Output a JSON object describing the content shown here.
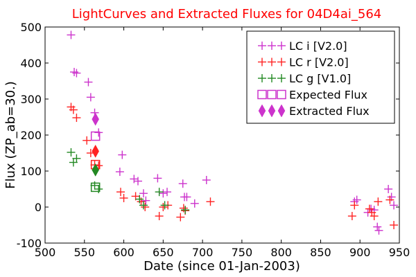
{
  "colors": {
    "lc_i": "#cc33cc",
    "lc_r": "#ff2222",
    "lc_g": "#228822",
    "title": "#ff0000"
  },
  "chart_data": {
    "type": "scatter",
    "title": "LightCurves and Extracted Fluxes for 04D4ai_564",
    "xlabel": "Date (since 01-Jan-2003)",
    "ylabel": "Flux (ZP_ab=30.)",
    "xlim": [
      500,
      950
    ],
    "ylim": [
      -100,
      500
    ],
    "xticks": [
      500,
      550,
      600,
      650,
      700,
      750,
      800,
      850,
      900,
      950
    ],
    "yticks": [
      -100,
      0,
      100,
      200,
      300,
      400,
      500
    ],
    "grid": false,
    "legend_position": "top-right",
    "legend": [
      {
        "label": "LC i [V2.0]",
        "marker": "plus",
        "color": "#cc33cc"
      },
      {
        "label": "LC r [V2.0]",
        "marker": "plus",
        "color": "#ff2222"
      },
      {
        "label": "LC g [V1.0]",
        "marker": "plus",
        "color": "#228822"
      },
      {
        "label": "Expected Flux",
        "marker": "square",
        "color": "#cc33cc"
      },
      {
        "label": "Extracted Flux",
        "marker": "diamond",
        "color": "#cc33cc"
      }
    ],
    "series": [
      {
        "name": "LC i [V2.0]",
        "marker": "plus",
        "color": "#cc33cc",
        "x": [
          533,
          537,
          540,
          555,
          558,
          563,
          568,
          595,
          598,
          613,
          618,
          625,
          628,
          643,
          650,
          655,
          675,
          677,
          680,
          690,
          705,
          893,
          896,
          910,
          914,
          918,
          922,
          924,
          936,
          940,
          943
        ],
        "y": [
          478,
          375,
          372,
          347,
          305,
          262,
          207,
          98,
          145,
          78,
          72,
          38,
          18,
          80,
          38,
          42,
          65,
          28,
          28,
          10,
          75,
          15,
          20,
          -15,
          -5,
          -8,
          -55,
          -65,
          50,
          28,
          5
        ]
      },
      {
        "name": "LC r [V2.0]",
        "marker": "plus",
        "color": "#ff2222",
        "x": [
          533,
          536,
          540,
          553,
          558,
          563,
          568,
          596,
          600,
          615,
          622,
          627,
          645,
          650,
          656,
          672,
          676,
          678,
          710,
          890,
          893,
          912,
          915,
          918,
          923,
          938,
          943
        ],
        "y": [
          278,
          270,
          248,
          185,
          150,
          117,
          115,
          42,
          25,
          30,
          15,
          0,
          -25,
          0,
          5,
          -28,
          -3,
          -10,
          15,
          -25,
          5,
          -5,
          -15,
          -25,
          15,
          20,
          -50
        ]
      },
      {
        "name": "LC g [V1.0]",
        "marker": "plus",
        "color": "#228822",
        "x": [
          533,
          536,
          540,
          563,
          568,
          620,
          625,
          645,
          652,
          678
        ],
        "y": [
          152,
          124,
          135,
          60,
          50,
          22,
          5,
          42,
          5,
          -8
        ]
      },
      {
        "name": "Expected Flux",
        "marker": "square",
        "color": "#cc33cc",
        "x": [
          564
        ],
        "y": [
          197
        ]
      },
      {
        "name": "Expected Flux",
        "marker": "square",
        "color": "#ff2222",
        "x": [
          564
        ],
        "y": [
          118
        ]
      },
      {
        "name": "Expected Flux",
        "marker": "square",
        "color": "#228822",
        "x": [
          564
        ],
        "y": [
          55
        ]
      },
      {
        "name": "Extracted Flux",
        "marker": "diamond",
        "color": "#cc33cc",
        "x": [
          564
        ],
        "y": [
          244
        ]
      },
      {
        "name": "Extracted Flux",
        "marker": "diamond",
        "color": "#ff2222",
        "x": [
          564
        ],
        "y": [
          155
        ]
      },
      {
        "name": "Extracted Flux",
        "marker": "diamond",
        "color": "#228822",
        "x": [
          564
        ],
        "y": [
          103
        ]
      }
    ]
  }
}
